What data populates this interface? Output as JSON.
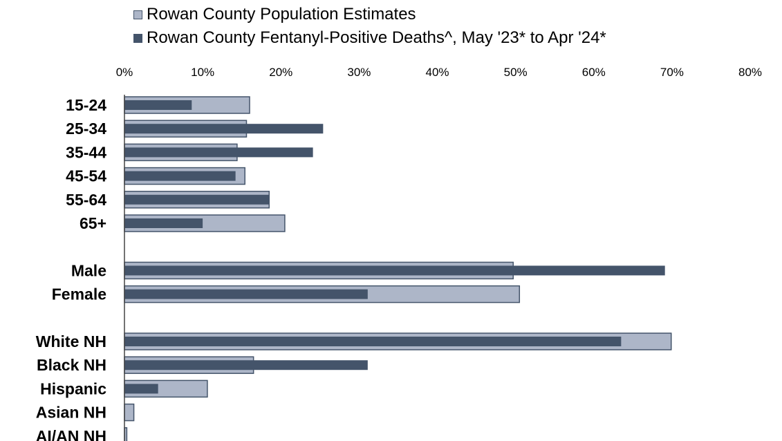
{
  "chart_data": {
    "type": "bar",
    "orientation": "horizontal",
    "xlim": [
      0,
      80
    ],
    "x_ticks": [
      "0%",
      "10%",
      "20%",
      "30%",
      "40%",
      "50%",
      "60%",
      "70%",
      "80%"
    ],
    "x_tick_values": [
      0,
      10,
      20,
      30,
      40,
      50,
      60,
      70,
      80
    ],
    "x_axis_position": "top",
    "grid": false,
    "legend_position": "top",
    "categories": [
      "15-24",
      "25-34",
      "35-44",
      "45-54",
      "55-64",
      "65+",
      "",
      "Male",
      "Female",
      "",
      "White NH",
      "Black NH",
      "Hispanic",
      "Asian NH",
      "AI/AN NH"
    ],
    "series": [
      {
        "name": "Rowan County Population Estimates",
        "color": "#adb6c8",
        "border": "#44546a",
        "values": [
          16,
          15.6,
          14.4,
          15.4,
          18.5,
          20.5,
          null,
          49.7,
          50.5,
          null,
          69.9,
          16.5,
          10.6,
          1.2,
          0.3
        ]
      },
      {
        "name": "Rowan County Fentanyl-Positive Deaths^, May '23* to Apr '24*",
        "color": "#44546a",
        "values": [
          8.6,
          25.4,
          24.1,
          14.2,
          18.5,
          10,
          null,
          69.1,
          31.1,
          null,
          63.5,
          31.1,
          4.3,
          0,
          0
        ]
      }
    ]
  }
}
